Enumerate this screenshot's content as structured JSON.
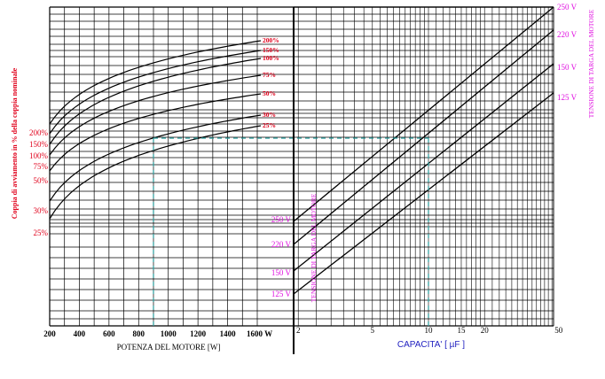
{
  "chart_data": {
    "type": "line",
    "left_panel": {
      "x_tick_labels": [
        "200",
        "400",
        "600",
        "800",
        "1000",
        "1200",
        "1400",
        "1600 W"
      ],
      "x_ticks": [
        200,
        400,
        600,
        800,
        1000,
        1200,
        1400,
        1600
      ],
      "xlim": [
        200,
        1600
      ],
      "xlabel": "POTENZA DEL MOTORE   [W]",
      "ylabel": "Coppia di avviamento in % della coppia nominale",
      "y_tick_labels": [
        "200%",
        "150%",
        "100%",
        "75%",
        "50%",
        "30%",
        "25%"
      ],
      "y_tick_values": [
        200,
        150,
        100,
        75,
        50,
        30,
        25
      ],
      "curve_labels": [
        "200%",
        "150%",
        "100%",
        "75%",
        "50%",
        "30%",
        "25%"
      ]
    },
    "right_panel": {
      "x_scale": "log",
      "x_tick_labels": [
        "2",
        "5",
        "10",
        "15",
        "20",
        "50"
      ],
      "x_ticks": [
        2,
        5,
        10,
        15,
        20,
        50
      ],
      "xlabel": "CAPACITA'   [ µF ]",
      "left_voltage_labels": [
        "250 V",
        "220 V",
        "150 V",
        "125 V"
      ],
      "right_voltage_labels": [
        "250 V",
        "220 V",
        "150 V",
        "125 V"
      ],
      "left_axis_label": "TENSIONE DI TARGA DEL MOTORE",
      "right_axis_label": "TENSIONE DI TARGA DEL MOTORE"
    },
    "example": {
      "power_W": 900,
      "capacitance_uF": 10
    },
    "colors": {
      "grid": "#000000",
      "curve_labels": "#e0001b",
      "voltage_labels": "#e010e0",
      "example_line": "#2a9d9d",
      "capacita_label": "#2020c0"
    }
  }
}
